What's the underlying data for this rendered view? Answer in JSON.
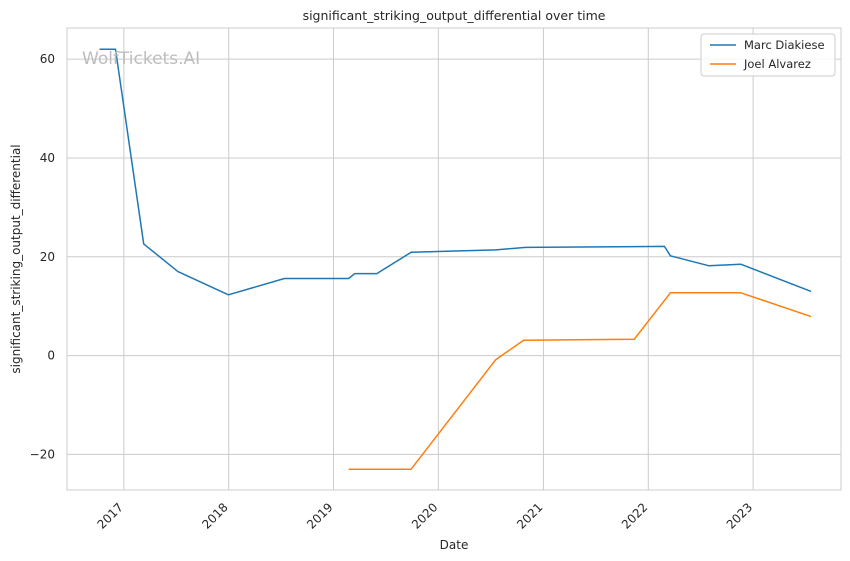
{
  "watermark": "WolfTickets.AI",
  "chart_data": {
    "type": "line",
    "title": "significant_striking_output_differential over time",
    "xlabel": "Date",
    "ylabel": "significant_striking_output_differential",
    "xlim": [
      "2016-06-17",
      "2023-11-03"
    ],
    "ylim": [
      -27.2,
      66.3
    ],
    "grid": true,
    "legend_position": "top-right",
    "x_ticks": [
      "2017",
      "2018",
      "2019",
      "2020",
      "2021",
      "2022",
      "2023"
    ],
    "y_ticks": [
      -20,
      0,
      20,
      40,
      60
    ],
    "series": [
      {
        "name": "Marc Diakiese",
        "color": "#1f77b4",
        "points": [
          [
            "2016-10-08",
            62.0
          ],
          [
            "2016-12-03",
            62.0
          ],
          [
            "2017-03-11",
            22.6
          ],
          [
            "2017-07-08",
            17.0
          ],
          [
            "2017-12-31",
            12.3
          ],
          [
            "2018-07-14",
            15.6
          ],
          [
            "2019-02-23",
            15.6
          ],
          [
            "2019-03-16",
            16.6
          ],
          [
            "2019-06-01",
            16.6
          ],
          [
            "2019-09-28",
            20.9
          ],
          [
            "2020-07-19",
            21.4
          ],
          [
            "2020-10-31",
            21.9
          ],
          [
            "2022-02-26",
            22.1
          ],
          [
            "2022-03-19",
            20.2
          ],
          [
            "2022-07-30",
            18.2
          ],
          [
            "2022-11-19",
            18.5
          ],
          [
            "2023-07-22",
            13.0
          ]
        ]
      },
      {
        "name": "Joel Alvarez",
        "color": "#ff7f0e",
        "points": [
          [
            "2019-02-23",
            -23.0
          ],
          [
            "2019-09-28",
            -23.0
          ],
          [
            "2020-07-19",
            -0.8
          ],
          [
            "2020-10-24",
            3.1
          ],
          [
            "2021-11-13",
            3.3
          ],
          [
            "2022-03-19",
            12.7
          ],
          [
            "2022-11-19",
            12.7
          ],
          [
            "2023-07-22",
            7.9
          ]
        ]
      }
    ]
  }
}
